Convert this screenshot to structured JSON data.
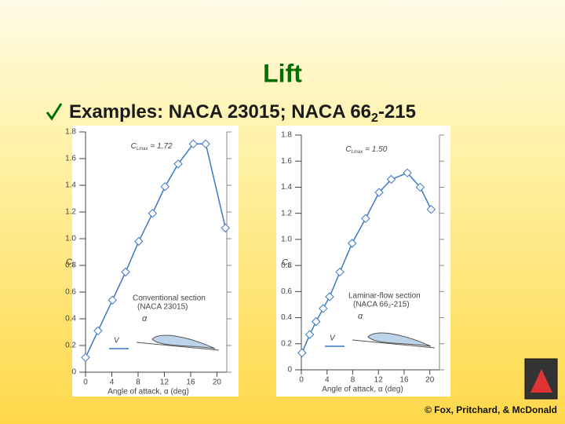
{
  "slide": {
    "title": "Lift",
    "bullet": {
      "text": "Examples: NACA 23015; NACA 66",
      "sub": "2",
      "tail": "-215"
    },
    "footer": "© Fox, Pritchard, & McDonald"
  },
  "chart_data": [
    {
      "type": "line",
      "xlim": [
        0,
        21.5
      ],
      "ylim": [
        0,
        1.8
      ],
      "xticks": [
        0,
        4,
        8,
        12,
        16,
        20
      ],
      "yticks": [
        0,
        0.2,
        0.4,
        0.6,
        0.8,
        {
          "value": 1,
          "label": "1.0"
        },
        1.2,
        1.4,
        1.6,
        1.8
      ],
      "xlabel": "Angle of attack, α (deg)",
      "ylabel": "C",
      "ylabel_sub": "L",
      "x": [
        0,
        1.9,
        4.1,
        6.1,
        8.1,
        10.2,
        12.1,
        14.1,
        16.4,
        18.3,
        21.3
      ],
      "series": [
        {
          "color": "#3a78c0",
          "values": [
            0.11,
            0.31,
            0.54,
            0.75,
            0.98,
            1.19,
            1.39,
            1.56,
            1.71,
            1.71,
            1.08
          ]
        }
      ],
      "annotations": {
        "clmax_c": "C",
        "clmax_sub": "Lmax",
        "clmax_val": "= 1.72",
        "section": "Conventional section",
        "section_name": "(NACA 23015)",
        "alpha": "α",
        "v": "V"
      }
    },
    {
      "type": "line",
      "xlim": [
        0,
        21.5
      ],
      "ylim": [
        0,
        1.8
      ],
      "xticks": [
        0,
        4,
        8,
        12,
        16,
        20
      ],
      "yticks": [
        0,
        0.2,
        0.4,
        0.6,
        0.8,
        {
          "value": 1,
          "label": "1.0"
        },
        1.2,
        1.4,
        1.6,
        1.8
      ],
      "xlabel": "Angle of attack, α (deg)",
      "ylabel": "C",
      "ylabel_sub": "L",
      "x": [
        0.1,
        1.3,
        2.3,
        3.4,
        4.4,
        6,
        7.9,
        10,
        12.1,
        14,
        16.5,
        18.5,
        20.2
      ],
      "series": [
        {
          "color": "#3a78c0",
          "values": [
            0.13,
            0.27,
            0.37,
            0.47,
            0.56,
            0.75,
            0.97,
            1.16,
            1.36,
            1.46,
            1.51,
            1.4,
            1.23
          ]
        }
      ],
      "annotations": {
        "clmax_c": "C",
        "clmax_sub": "Lmax",
        "clmax_val": "= 1.50",
        "section": "Laminar-flow section",
        "section_name": "(NACA 66₂-215)",
        "alpha": "α",
        "v": "V"
      }
    }
  ]
}
